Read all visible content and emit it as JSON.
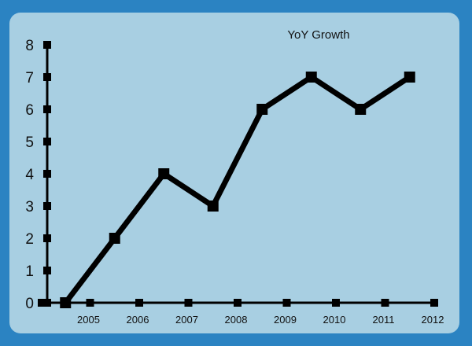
{
  "chart_data": {
    "type": "line",
    "title": "YoY Growth",
    "xlabel": "",
    "ylabel": "",
    "x_tick_labels": [
      "2005",
      "2006",
      "2007",
      "2008",
      "2009",
      "2010",
      "2011",
      "2012"
    ],
    "y_ticks": [
      0,
      1,
      2,
      3,
      4,
      5,
      6,
      7,
      8
    ],
    "ylim": [
      0,
      8
    ],
    "series": [
      {
        "x": [
          2004.5,
          2005.5,
          2006.5,
          2007.5,
          2008.5,
          2009.5,
          2010.5,
          2011.5
        ],
        "values": [
          0,
          2,
          4,
          3,
          6,
          7,
          6,
          7
        ]
      }
    ],
    "grid": false,
    "line_color": "#000000",
    "background_color": "#a8cfe2",
    "frame_color": "#2b83c2"
  }
}
